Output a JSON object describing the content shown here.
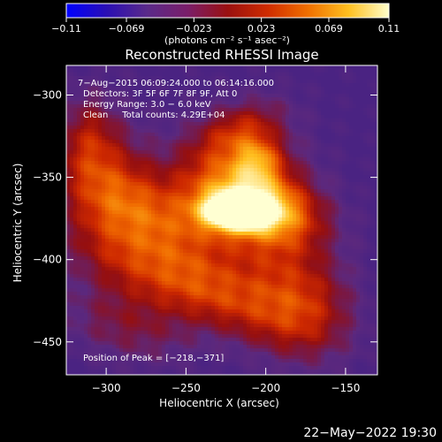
{
  "chart_data": {
    "type": "heatmap",
    "title": "Reconstructed RHESSI Image",
    "xlabel": "Heliocentric X (arcsec)",
    "ylabel": "Heliocentric Y (arcsec)",
    "xlim": [
      -325,
      -130
    ],
    "ylim": [
      -470,
      -282
    ],
    "x_ticks": [
      -300,
      -250,
      -200,
      -150
    ],
    "y_ticks": [
      -300,
      -350,
      -400,
      -450
    ],
    "x_tick_labels": [
      "−300",
      "−250",
      "−200",
      "−150"
    ],
    "y_tick_labels": [
      "−300",
      "−350",
      "−400",
      "−450"
    ],
    "colorbar": {
      "range": [
        -0.11,
        0.11
      ],
      "ticks": [
        -0.11,
        -0.069,
        -0.023,
        0.023,
        0.069,
        0.11
      ],
      "tick_labels": [
        "−0.11",
        "−0.069",
        "−0.023",
        "0.023",
        "0.069",
        "0.11"
      ],
      "unit_label": "(photons cm⁻² s⁻¹ asec⁻²)",
      "colormap": [
        "#0000ff",
        "#2a0fb4",
        "#5a2a8a",
        "#7a1e6a",
        "#9a1010",
        "#d02c00",
        "#f07000",
        "#ffc020",
        "#ffffcc"
      ]
    },
    "annotations": [
      "7−Aug−2015 06:09:24.000 to 06:14:16.000",
      "Detectors: 3F 5F 6F 7F 8F 9F, Att 0",
      "Energy Range: 3.0 − 6.0 keV",
      "Clean     Total counts: 4.29E+04"
    ],
    "peak_label": "Position of Peak = [−218,−371]",
    "peak": [
      -218,
      -371
    ],
    "footer_timestamp": "22−May−2022 19:30"
  }
}
